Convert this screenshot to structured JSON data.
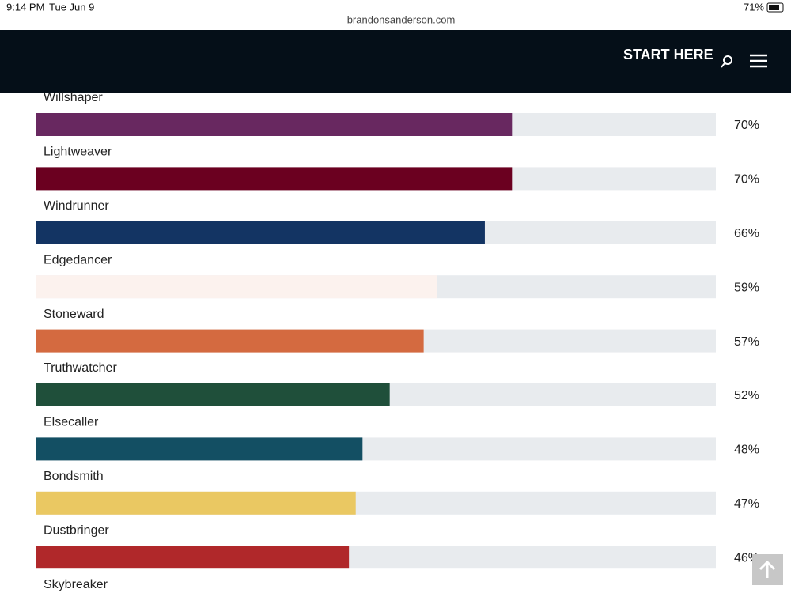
{
  "status_bar": {
    "time": "9:14 PM",
    "date": "Tue Jun 9",
    "url": "brandonsanderson.com",
    "battery": "71%"
  },
  "nav": {
    "link": "START HERE"
  },
  "chart_data": {
    "type": "bar",
    "categories": [
      "Willshaper",
      "Lightweaver",
      "Windrunner",
      "Edgedancer",
      "Stoneward",
      "Truthwatcher",
      "Elsecaller",
      "Bondsmith",
      "Dustbringer",
      "Skybreaker"
    ],
    "values": [
      70,
      70,
      66,
      59,
      57,
      52,
      48,
      47,
      46,
      null
    ],
    "value_labels": [
      "70%",
      "70%",
      "66%",
      "59%",
      "57%",
      "52%",
      "48%",
      "47%",
      "46%",
      null
    ],
    "colors": [
      "#682860",
      "#6b0020",
      "#133463",
      "#fcf2ee",
      "#d46a40",
      "#1f4f3a",
      "#134f63",
      "#eac862",
      "#b0282a",
      null
    ],
    "xlim": [
      0,
      100
    ]
  }
}
